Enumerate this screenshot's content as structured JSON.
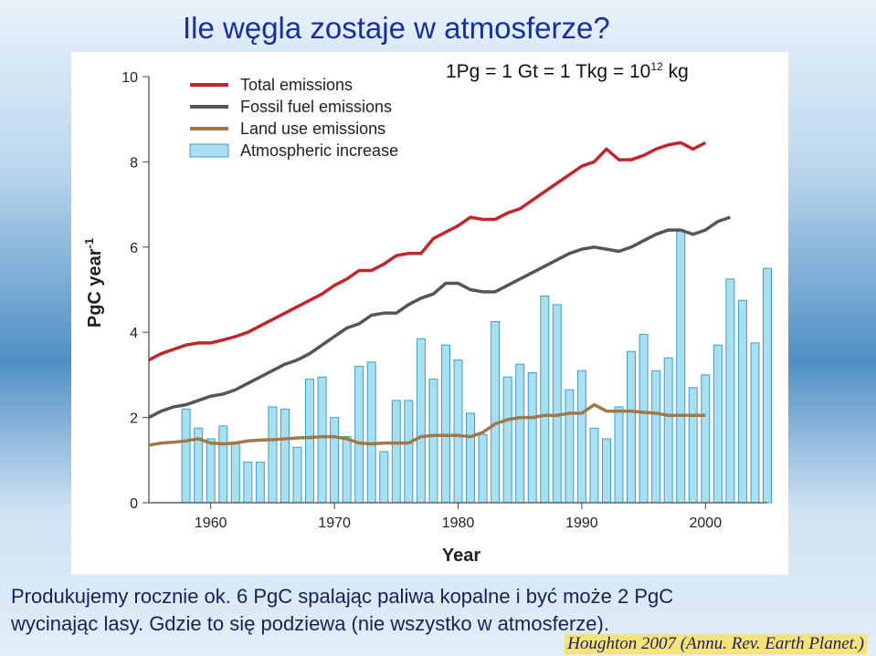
{
  "slide": {
    "title": "Ile węgla zostaje w atmosferze?",
    "note": {
      "base": "1Pg = 1 Gt = 1 Tkg = 10",
      "exponent": "12",
      "unit": "kg"
    },
    "caption": [
      "Produkujemy rocznie ok. 6 PgC spalając paliwa kopalne i być może 2 PgC",
      "wycinając lasy. Gdzie to się podziewa (nie wszystko w atmosferze)."
    ],
    "credit": "Houghton 2007 (Annu. Rev. Earth Planet.)"
  },
  "chart_data": {
    "type": "line-bar",
    "x_label": "Year",
    "y_label": {
      "base": "PgC year",
      "exponent": "-1"
    },
    "x": [
      1955,
      1956,
      1957,
      1958,
      1959,
      1960,
      1961,
      1962,
      1963,
      1964,
      1965,
      1966,
      1967,
      1968,
      1969,
      1970,
      1971,
      1972,
      1973,
      1974,
      1975,
      1976,
      1977,
      1978,
      1979,
      1980,
      1981,
      1982,
      1983,
      1984,
      1985,
      1986,
      1987,
      1988,
      1989,
      1990,
      1991,
      1992,
      1993,
      1994,
      1995,
      1996,
      1997,
      1998,
      1999,
      2000,
      2001,
      2002,
      2003,
      2004,
      2005
    ],
    "xlim": [
      1955,
      2005
    ],
    "xticks": [
      1960,
      1970,
      1980,
      1990,
      2000
    ],
    "ylim": [
      0,
      10
    ],
    "yticks": [
      0,
      2,
      4,
      6,
      8,
      10
    ],
    "series": [
      {
        "name": "Total emissions",
        "kind": "line",
        "color": "#c0272d",
        "values": [
          3.35,
          3.5,
          3.6,
          3.7,
          3.75,
          3.75,
          3.82,
          3.9,
          4.0,
          4.15,
          4.3,
          4.45,
          4.6,
          4.75,
          4.9,
          5.1,
          5.25,
          5.45,
          5.45,
          5.6,
          5.8,
          5.85,
          5.85,
          6.2,
          6.35,
          6.5,
          6.7,
          6.65,
          6.65,
          6.8,
          6.9,
          7.1,
          7.3,
          7.5,
          7.7,
          7.9,
          8.0,
          8.3,
          8.05,
          8.05,
          8.15,
          8.3,
          8.4,
          8.45,
          8.3,
          8.45,
          null,
          null,
          null,
          null,
          null
        ]
      },
      {
        "name": "Fossil fuel emissions",
        "kind": "line",
        "color": "#555555",
        "values": [
          2.0,
          2.15,
          2.25,
          2.3,
          2.4,
          2.5,
          2.55,
          2.65,
          2.8,
          2.95,
          3.1,
          3.25,
          3.35,
          3.5,
          3.7,
          3.9,
          4.1,
          4.2,
          4.4,
          4.45,
          4.45,
          4.65,
          4.8,
          4.9,
          5.15,
          5.15,
          5.0,
          4.95,
          4.95,
          5.1,
          5.25,
          5.4,
          5.55,
          5.7,
          5.85,
          5.95,
          6.0,
          5.95,
          5.9,
          6.0,
          6.15,
          6.3,
          6.4,
          6.4,
          6.3,
          6.4,
          6.6,
          6.7,
          null,
          null,
          null
        ]
      },
      {
        "name": "Land use emissions",
        "kind": "line",
        "color": "#a0784a",
        "values": [
          1.35,
          1.4,
          1.42,
          1.45,
          1.5,
          1.4,
          1.38,
          1.4,
          1.45,
          1.47,
          1.48,
          1.5,
          1.52,
          1.53,
          1.55,
          1.55,
          1.5,
          1.4,
          1.38,
          1.4,
          1.4,
          1.4,
          1.55,
          1.58,
          1.58,
          1.58,
          1.55,
          1.65,
          1.85,
          1.95,
          2.0,
          2.0,
          2.05,
          2.05,
          2.1,
          2.1,
          2.3,
          2.15,
          2.15,
          2.15,
          2.12,
          2.1,
          2.05,
          2.05,
          2.05,
          2.05,
          null,
          null,
          null,
          null,
          null
        ]
      },
      {
        "name": "Atmospheric increase",
        "kind": "bar",
        "color": "#a9dff0",
        "values": [
          null,
          null,
          null,
          2.2,
          1.75,
          1.5,
          1.8,
          1.4,
          0.95,
          0.95,
          2.25,
          2.2,
          1.3,
          2.9,
          2.95,
          2.0,
          1.55,
          3.2,
          3.3,
          1.2,
          2.4,
          2.4,
          3.85,
          2.9,
          3.7,
          3.35,
          2.1,
          1.6,
          4.25,
          2.95,
          3.25,
          3.05,
          4.85,
          4.65,
          2.65,
          3.1,
          1.75,
          1.5,
          2.25,
          3.55,
          3.95,
          3.1,
          3.4,
          6.4,
          2.7,
          3.0,
          3.7,
          5.25,
          4.75,
          3.75,
          5.5
        ]
      }
    ]
  }
}
